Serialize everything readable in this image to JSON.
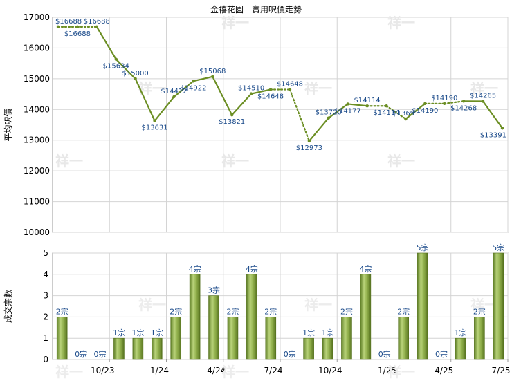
{
  "chart_data": [
    {
      "type": "line",
      "title": "金禧花園 - 實用呎價走勢",
      "ylabel": "平均呎價",
      "ylim": [
        10000,
        17000
      ],
      "yticks": [
        "17000",
        "16000",
        "15000",
        "14000",
        "13000",
        "12000",
        "11000",
        "10000"
      ],
      "grid": true,
      "series": [
        {
          "color": "#6b8e23",
          "values": [
            16688,
            16688,
            16688,
            15634,
            15000,
            13631,
            14412,
            14922,
            15068,
            13821,
            14510,
            14648,
            14648,
            12973,
            13720,
            14177,
            14114,
            14114,
            13691,
            14190,
            14190,
            14268,
            14265,
            13391
          ],
          "labels": [
            "$16688",
            "$16688",
            "$16688",
            "$15634",
            "$15000",
            "$13631",
            "$14412",
            "$14922",
            "$15068",
            "$13821",
            "$14510",
            "$14648",
            "$14648",
            "$12973",
            "$13720",
            "$14177",
            "$14114",
            "$14114",
            "$13691",
            "$14190",
            "$14190",
            "$14268",
            "$14265",
            "$13391"
          ],
          "carried_forward": [
            false,
            true,
            false,
            false,
            false,
            false,
            false,
            false,
            false,
            false,
            false,
            false,
            true,
            false,
            false,
            false,
            false,
            true,
            false,
            false,
            true,
            false,
            false,
            false
          ]
        }
      ]
    },
    {
      "type": "bar",
      "ylabel": "成交宗數",
      "ylim": [
        0,
        5
      ],
      "yticks": [
        "5",
        "4",
        "3",
        "2",
        "1",
        "0"
      ],
      "grid": true,
      "bar_color": "#7a9a3a",
      "values": [
        2,
        0,
        0,
        1,
        1,
        1,
        2,
        4,
        3,
        2,
        4,
        2,
        0,
        1,
        1,
        2,
        4,
        0,
        2,
        5,
        0,
        1,
        2,
        5
      ],
      "labels": [
        "2宗",
        "0宗",
        "0宗",
        "1宗",
        "1宗",
        "1宗",
        "2宗",
        "4宗",
        "3宗",
        "2宗",
        "4宗",
        "2宗",
        "0宗",
        "1宗",
        "1宗",
        "2宗",
        "4宗",
        "0宗",
        "2宗",
        "5宗",
        "0宗",
        "1宗",
        "2宗",
        "5宗"
      ],
      "x_ticks": [
        {
          "index": 2,
          "label": "10/23"
        },
        {
          "index": 5,
          "label": "1/24"
        },
        {
          "index": 8,
          "label": "4/24"
        },
        {
          "index": 11,
          "label": "7/24"
        },
        {
          "index": 14,
          "label": "10/24"
        },
        {
          "index": 17,
          "label": "1/25"
        },
        {
          "index": 20,
          "label": "4/25"
        },
        {
          "index": 23,
          "label": "7/25"
        }
      ]
    }
  ],
  "watermark": "祥一"
}
